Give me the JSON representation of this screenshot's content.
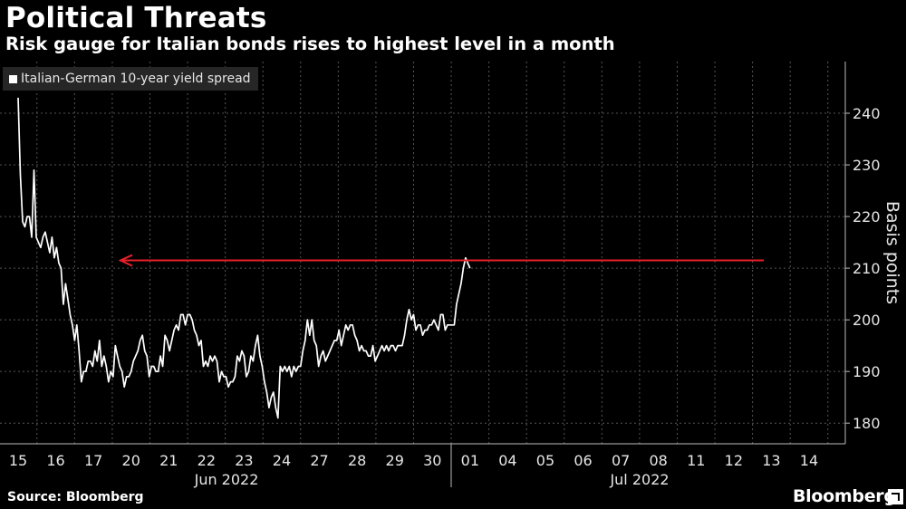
{
  "chart_data": {
    "type": "line",
    "title": "Political Threats",
    "subtitle": "Risk gauge for Italian bonds rises to highest level in a month",
    "ylabel": "Basis points",
    "ylim": [
      176,
      250
    ],
    "y_ticks": [
      180,
      190,
      200,
      210,
      220,
      230,
      240
    ],
    "grid": true,
    "legend_position": "top-left",
    "x_ticks": [
      {
        "label": "15",
        "index": 0
      },
      {
        "label": "16",
        "index": 1
      },
      {
        "label": "17",
        "index": 2
      },
      {
        "label": "20",
        "index": 3
      },
      {
        "label": "21",
        "index": 4
      },
      {
        "label": "22",
        "index": 5
      },
      {
        "label": "23",
        "index": 6
      },
      {
        "label": "24",
        "index": 7
      },
      {
        "label": "27",
        "index": 8
      },
      {
        "label": "28",
        "index": 9
      },
      {
        "label": "29",
        "index": 10
      },
      {
        "label": "30",
        "index": 11
      },
      {
        "label": "01",
        "index": 12
      },
      {
        "label": "04",
        "index": 13
      },
      {
        "label": "05",
        "index": 14
      },
      {
        "label": "06",
        "index": 15
      },
      {
        "label": "07",
        "index": 16
      },
      {
        "label": "08",
        "index": 17
      },
      {
        "label": "11",
        "index": 18
      },
      {
        "label": "12",
        "index": 19
      },
      {
        "label": "13",
        "index": 20
      },
      {
        "label": "14",
        "index": 21
      }
    ],
    "x_groups": [
      {
        "label": "Jun 2022"
      },
      {
        "label": "Jul 2022"
      }
    ],
    "series": [
      {
        "name": "Italian-German 10-year yield spread",
        "color": "#ffffff",
        "points": [
          [
            0.0,
            243
          ],
          [
            0.06,
            228
          ],
          [
            0.12,
            219
          ],
          [
            0.18,
            218
          ],
          [
            0.24,
            220
          ],
          [
            0.3,
            220
          ],
          [
            0.36,
            216
          ],
          [
            0.42,
            229
          ],
          [
            0.48,
            216
          ],
          [
            0.54,
            215
          ],
          [
            0.6,
            214
          ],
          [
            0.66,
            216
          ],
          [
            0.72,
            217
          ],
          [
            0.78,
            215
          ],
          [
            0.84,
            213
          ],
          [
            0.9,
            216
          ],
          [
            0.96,
            212
          ],
          [
            1.02,
            214
          ],
          [
            1.08,
            211
          ],
          [
            1.14,
            210
          ],
          [
            1.2,
            203
          ],
          [
            1.26,
            207
          ],
          [
            1.32,
            204
          ],
          [
            1.38,
            201
          ],
          [
            1.44,
            199
          ],
          [
            1.5,
            196
          ],
          [
            1.56,
            199
          ],
          [
            1.62,
            194
          ],
          [
            1.68,
            188
          ],
          [
            1.74,
            190
          ],
          [
            1.8,
            190
          ],
          [
            1.86,
            192
          ],
          [
            1.92,
            192
          ],
          [
            1.98,
            191
          ],
          [
            2.04,
            194
          ],
          [
            2.1,
            192
          ],
          [
            2.16,
            196
          ],
          [
            2.22,
            191
          ],
          [
            2.28,
            193
          ],
          [
            2.34,
            191
          ],
          [
            2.4,
            188
          ],
          [
            2.46,
            190
          ],
          [
            2.52,
            189
          ],
          [
            2.58,
            195
          ],
          [
            2.64,
            193
          ],
          [
            2.7,
            191
          ],
          [
            2.76,
            190
          ],
          [
            2.82,
            187
          ],
          [
            2.88,
            189
          ],
          [
            2.94,
            189
          ],
          [
            3.0,
            190
          ],
          [
            3.06,
            192
          ],
          [
            3.12,
            193
          ],
          [
            3.18,
            194
          ],
          [
            3.24,
            196
          ],
          [
            3.3,
            197
          ],
          [
            3.36,
            194
          ],
          [
            3.42,
            193
          ],
          [
            3.48,
            189
          ],
          [
            3.54,
            191
          ],
          [
            3.6,
            191
          ],
          [
            3.66,
            190
          ],
          [
            3.72,
            190
          ],
          [
            3.78,
            193
          ],
          [
            3.84,
            191
          ],
          [
            3.9,
            197
          ],
          [
            3.96,
            196
          ],
          [
            4.02,
            194
          ],
          [
            4.08,
            196
          ],
          [
            4.14,
            198
          ],
          [
            4.2,
            199
          ],
          [
            4.26,
            198
          ],
          [
            4.32,
            201
          ],
          [
            4.38,
            201
          ],
          [
            4.44,
            199
          ],
          [
            4.5,
            201
          ],
          [
            4.56,
            201
          ],
          [
            4.62,
            200
          ],
          [
            4.68,
            198
          ],
          [
            4.74,
            197
          ],
          [
            4.8,
            195
          ],
          [
            4.86,
            196
          ],
          [
            4.92,
            191
          ],
          [
            4.98,
            192
          ],
          [
            5.04,
            191
          ],
          [
            5.1,
            193
          ],
          [
            5.16,
            192
          ],
          [
            5.22,
            193
          ],
          [
            5.28,
            192
          ],
          [
            5.34,
            188
          ],
          [
            5.4,
            190
          ],
          [
            5.46,
            189
          ],
          [
            5.52,
            189
          ],
          [
            5.58,
            187
          ],
          [
            5.64,
            188
          ],
          [
            5.7,
            188
          ],
          [
            5.76,
            189
          ],
          [
            5.82,
            193
          ],
          [
            5.88,
            192
          ],
          [
            5.94,
            194
          ],
          [
            6.0,
            193
          ],
          [
            6.06,
            189
          ],
          [
            6.12,
            190
          ],
          [
            6.18,
            193
          ],
          [
            6.24,
            192
          ],
          [
            6.3,
            195
          ],
          [
            6.36,
            197
          ],
          [
            6.42,
            193
          ],
          [
            6.48,
            191
          ],
          [
            6.54,
            188
          ],
          [
            6.6,
            186
          ],
          [
            6.66,
            183
          ],
          [
            6.72,
            185
          ],
          [
            6.78,
            186
          ],
          [
            6.84,
            183
          ],
          [
            6.9,
            181
          ],
          [
            6.96,
            191
          ],
          [
            7.02,
            190
          ],
          [
            7.08,
            191
          ],
          [
            7.14,
            190
          ],
          [
            7.2,
            191
          ],
          [
            7.26,
            189
          ],
          [
            7.32,
            191
          ],
          [
            7.38,
            190
          ],
          [
            7.44,
            191
          ],
          [
            7.5,
            191
          ],
          [
            7.56,
            194
          ],
          [
            7.62,
            196
          ],
          [
            7.68,
            200
          ],
          [
            7.74,
            197
          ],
          [
            7.8,
            200
          ],
          [
            7.86,
            196
          ],
          [
            7.92,
            195
          ],
          [
            7.98,
            191
          ],
          [
            8.04,
            193
          ],
          [
            8.1,
            194
          ],
          [
            8.16,
            192
          ],
          [
            8.22,
            193
          ],
          [
            8.28,
            194
          ],
          [
            8.34,
            195
          ],
          [
            8.4,
            196
          ],
          [
            8.46,
            196
          ],
          [
            8.52,
            198
          ],
          [
            8.58,
            195
          ],
          [
            8.64,
            197
          ],
          [
            8.7,
            199
          ],
          [
            8.76,
            198
          ],
          [
            8.82,
            199
          ],
          [
            8.88,
            199
          ],
          [
            8.94,
            197
          ],
          [
            9.0,
            196
          ],
          [
            9.06,
            194
          ],
          [
            9.12,
            195
          ],
          [
            9.18,
            194
          ],
          [
            9.24,
            194
          ],
          [
            9.3,
            193
          ],
          [
            9.36,
            193
          ],
          [
            9.42,
            195
          ],
          [
            9.48,
            192
          ],
          [
            9.54,
            193
          ],
          [
            9.6,
            194
          ],
          [
            9.66,
            195
          ],
          [
            9.72,
            194
          ],
          [
            9.78,
            195
          ],
          [
            9.84,
            194
          ],
          [
            9.9,
            195
          ],
          [
            9.96,
            195
          ],
          [
            10.02,
            194
          ],
          [
            10.08,
            195
          ],
          [
            10.14,
            195
          ],
          [
            10.2,
            195
          ],
          [
            10.26,
            197
          ],
          [
            10.32,
            200
          ],
          [
            10.38,
            202
          ],
          [
            10.44,
            200
          ],
          [
            10.5,
            201
          ],
          [
            10.56,
            198
          ],
          [
            10.62,
            199
          ],
          [
            10.68,
            199
          ],
          [
            10.74,
            197
          ],
          [
            10.8,
            198
          ],
          [
            10.86,
            198
          ],
          [
            10.92,
            199
          ],
          [
            10.98,
            199
          ],
          [
            11.04,
            200
          ],
          [
            11.1,
            199
          ],
          [
            11.16,
            198
          ],
          [
            11.22,
            201
          ],
          [
            11.28,
            201
          ],
          [
            11.34,
            198
          ],
          [
            11.4,
            199
          ],
          [
            11.46,
            199
          ],
          [
            11.52,
            199
          ],
          [
            11.58,
            199
          ],
          [
            11.64,
            203
          ],
          [
            11.7,
            205
          ],
          [
            11.76,
            207
          ],
          [
            11.82,
            210
          ],
          [
            11.88,
            212
          ],
          [
            11.94,
            211
          ],
          [
            12.0,
            210
          ]
        ]
      }
    ],
    "annotations": [
      {
        "type": "arrow",
        "color": "#e8202a",
        "direction": "left",
        "value": 211.5
      }
    ]
  },
  "source": "Source: Bloomberg",
  "brand": "Bloomberg"
}
